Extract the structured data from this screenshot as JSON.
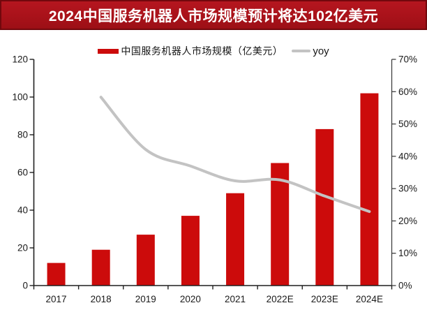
{
  "title": "2024中国服务机器人市场规模预计将达102亿美元",
  "legend": {
    "market_label": "中国服务机器人市场规模（亿美元）",
    "yoy_label": "yoy"
  },
  "colors": {
    "bar": "#cc0b0b",
    "line": "#c3c3c3",
    "banner_bg": "#a9121a",
    "banner_bg_light": "#b5161f",
    "banner_bg_dark": "#9c0f16",
    "banner_border": "#72080d",
    "axis": "#1f1f1f",
    "right_axis": "#3f3f3f",
    "tick_text": "#1a1a1a"
  },
  "chart_data": {
    "type": "bar",
    "title": "2024中国服务机器人市场规模预计将达102亿美元",
    "categories": [
      "2017",
      "2018",
      "2019",
      "2020",
      "2021",
      "2022E",
      "2023E",
      "2024E"
    ],
    "series": [
      {
        "name": "中国服务机器人市场规模（亿美元）",
        "type": "bar",
        "axis": "left",
        "values": [
          12,
          19,
          27,
          37,
          49,
          65,
          83,
          102
        ]
      },
      {
        "name": "yoy",
        "type": "line",
        "axis": "right",
        "values": [
          null,
          58.3,
          42.1,
          37.0,
          32.4,
          32.7,
          27.7,
          22.9
        ]
      }
    ],
    "left_axis": {
      "min": 0,
      "max": 120,
      "step": 20
    },
    "right_axis": {
      "min": 0,
      "max": 70,
      "step": 10,
      "format": "percent"
    },
    "grid": false,
    "legend_position": "top"
  }
}
